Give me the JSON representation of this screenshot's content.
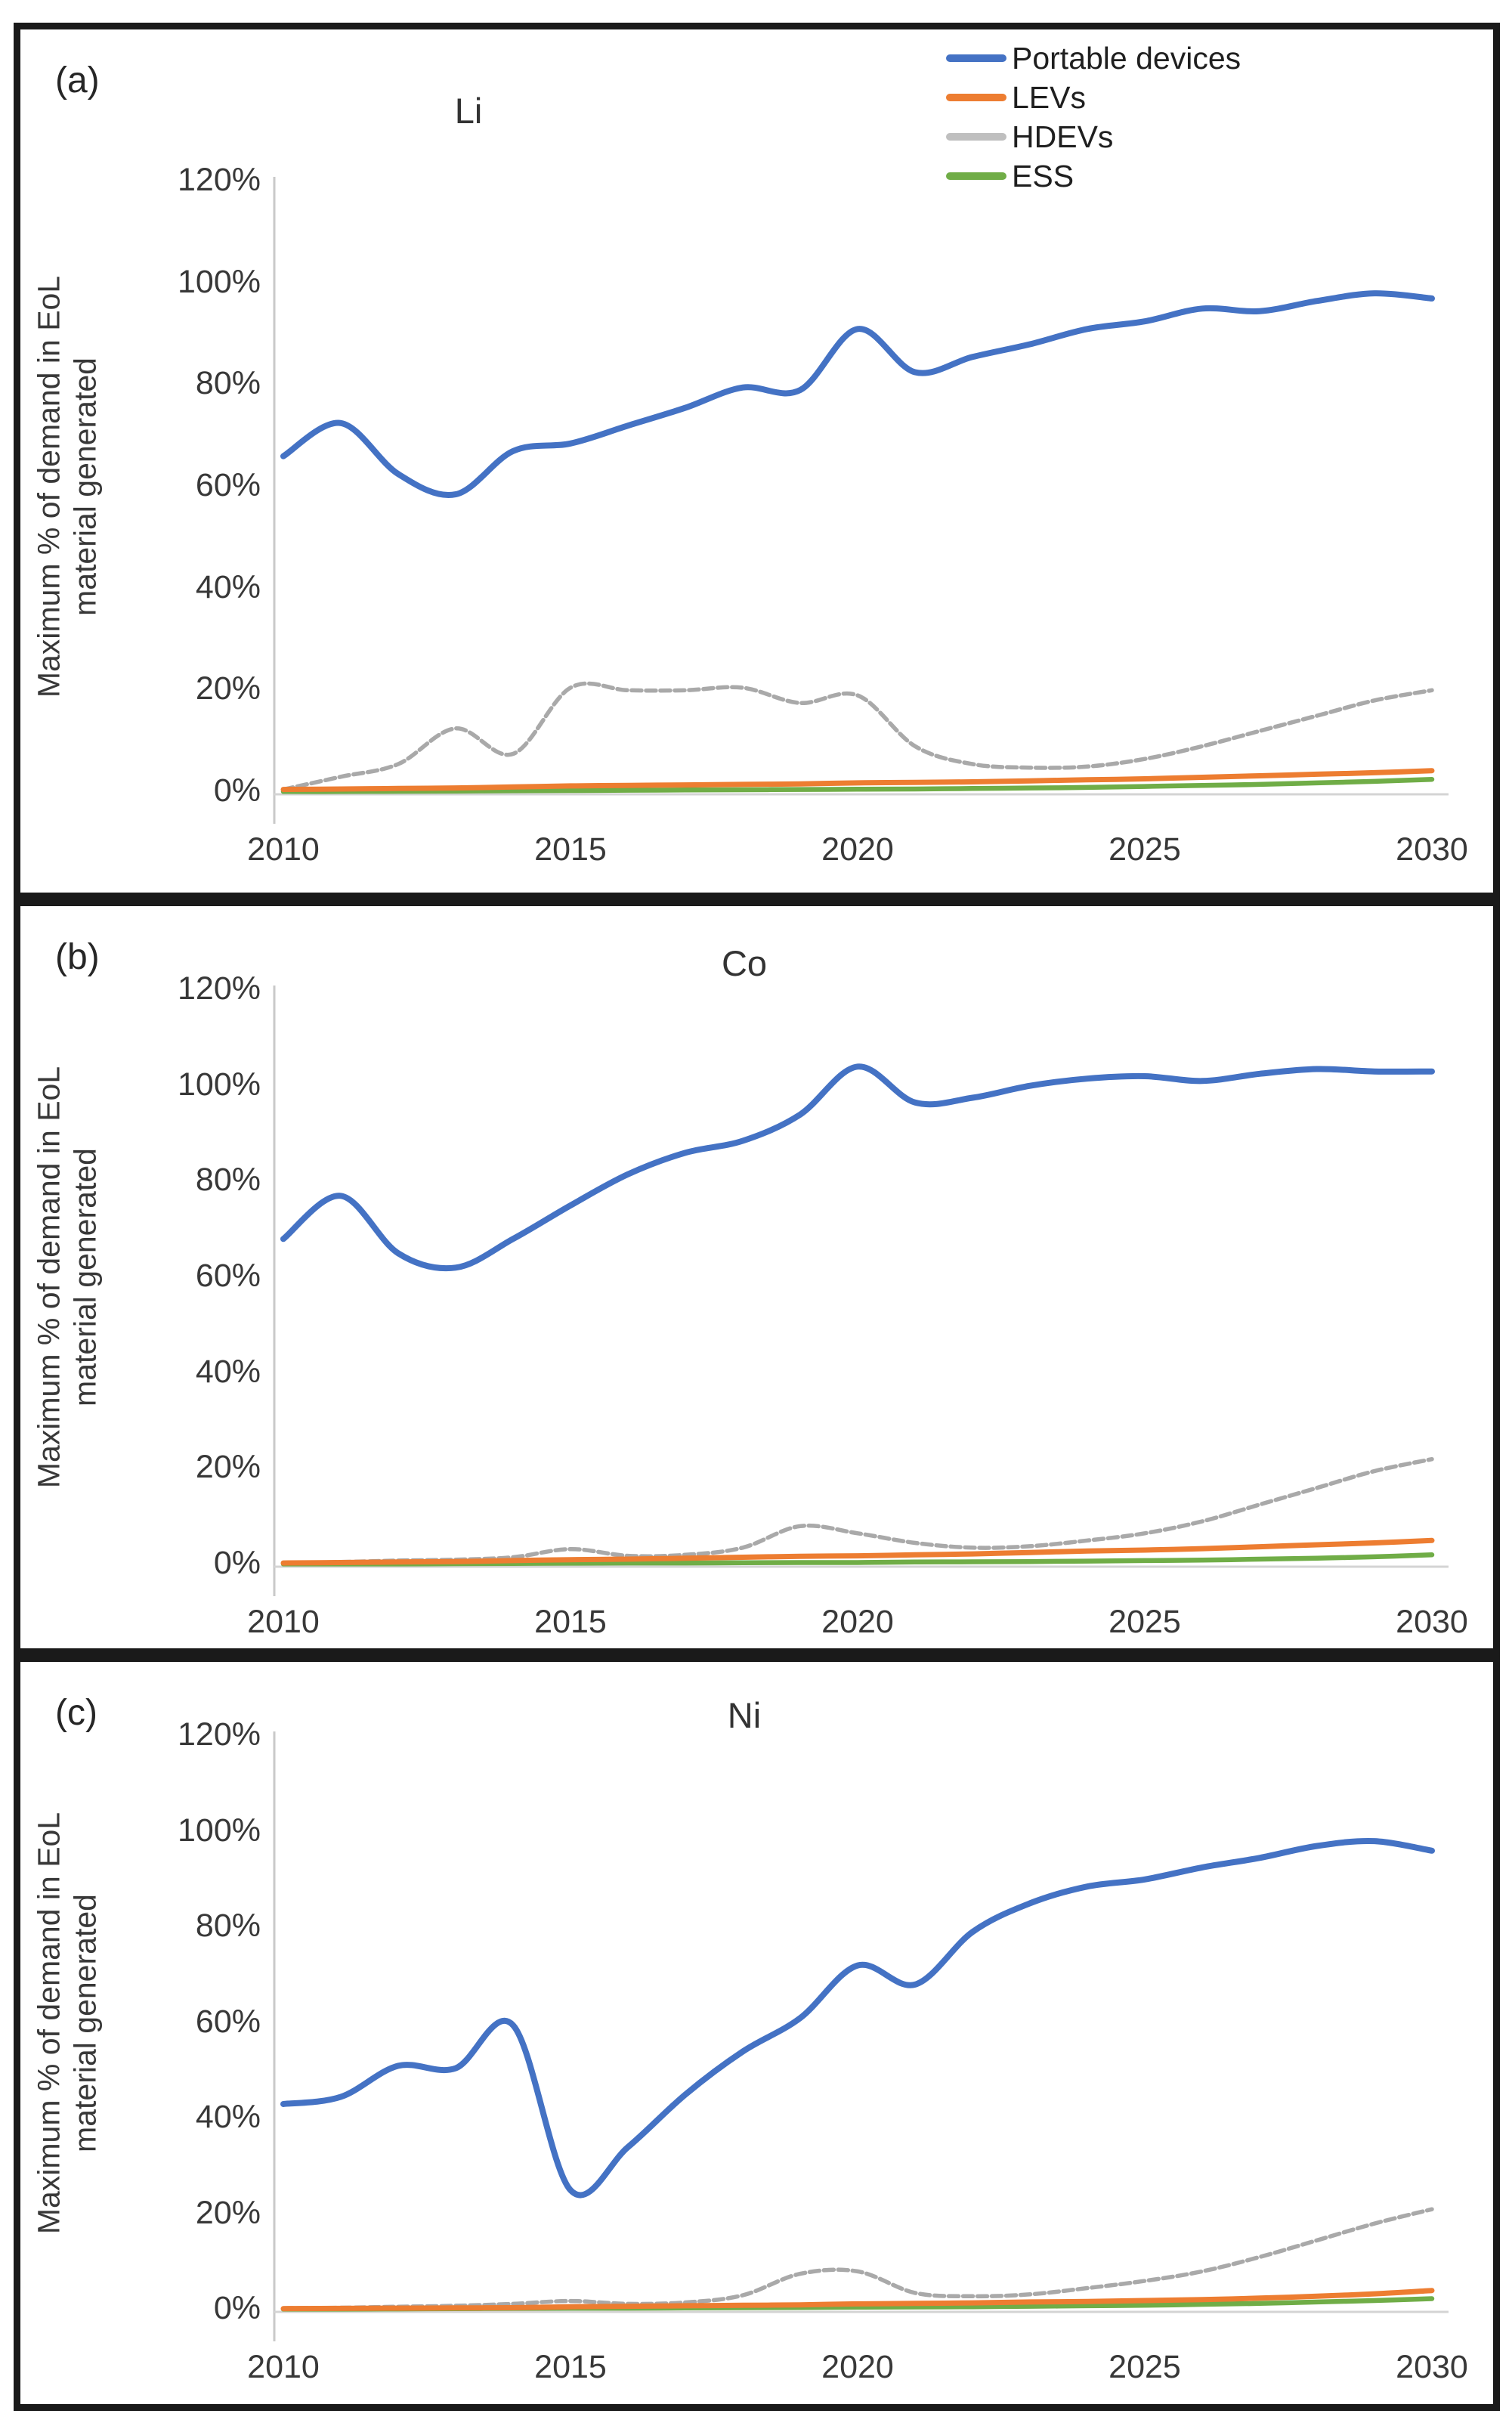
{
  "figure": {
    "ylabel_line1": "Maximum % of demand in EoL",
    "ylabel_line2": "material generated",
    "y_tick_labels": [
      "0%",
      "20%",
      "40%",
      "60%",
      "80%",
      "100%",
      "120%"
    ],
    "x_tick_labels": [
      "2010",
      "2015",
      "2020",
      "2025",
      "2030"
    ]
  },
  "legend": {
    "items": [
      {
        "label": "Portable devices",
        "color": "#4472C4"
      },
      {
        "label": "LEVs",
        "color": "#ED7D31"
      },
      {
        "label": "HDEVs",
        "color": "#BFBFBF"
      },
      {
        "label": "ESS",
        "color": "#70AD47"
      }
    ]
  },
  "panels": [
    {
      "label": "(a)",
      "title": "Li"
    },
    {
      "label": "(b)",
      "title": "Co"
    },
    {
      "label": "(c)",
      "title": "Ni"
    }
  ],
  "chart_data": [
    {
      "type": "line",
      "panel": "(a)",
      "title": "Li",
      "xlabel": "",
      "ylabel": "Maximum % of demand in EoL material generated",
      "xlim": [
        2010,
        2030
      ],
      "ylim": [
        0,
        120
      ],
      "grid": false,
      "legend_position": "top-right",
      "x": [
        2010,
        2011,
        2012,
        2013,
        2014,
        2015,
        2016,
        2017,
        2018,
        2019,
        2020,
        2021,
        2022,
        2023,
        2024,
        2025,
        2026,
        2027,
        2028,
        2029,
        2030
      ],
      "series": [
        {
          "name": "Portable devices",
          "color": "#4472C4",
          "values": [
            66,
            72.5,
            62.5,
            58.5,
            67,
            68.5,
            72,
            75.5,
            79.5,
            79,
            91,
            82.5,
            85.5,
            88,
            91,
            92.5,
            95,
            94.5,
            96.5,
            98,
            97
          ]
        },
        {
          "name": "LEVs",
          "color": "#ED7D31",
          "values": [
            0.5,
            0.6,
            0.7,
            0.8,
            1,
            1.2,
            1.3,
            1.4,
            1.5,
            1.6,
            1.8,
            1.9,
            2,
            2.2,
            2.4,
            2.6,
            2.9,
            3.2,
            3.5,
            3.8,
            4.2
          ]
        },
        {
          "name": "HDEVs",
          "color": "#A9A9A9",
          "values": [
            0.5,
            3,
            5.5,
            12.5,
            7.5,
            20.5,
            20,
            20,
            20.5,
            17.5,
            19,
            9,
            5.5,
            4.8,
            5,
            6.5,
            9,
            12,
            15,
            18,
            20
          ]
        },
        {
          "name": "ESS",
          "color": "#70AD47",
          "values": [
            0.1,
            0.1,
            0.15,
            0.2,
            0.25,
            0.3,
            0.35,
            0.4,
            0.45,
            0.5,
            0.55,
            0.6,
            0.7,
            0.8,
            0.9,
            1.1,
            1.3,
            1.5,
            1.8,
            2.1,
            2.5
          ]
        }
      ]
    },
    {
      "type": "line",
      "panel": "(b)",
      "title": "Co",
      "xlabel": "",
      "ylabel": "Maximum % of demand in EoL material generated",
      "xlim": [
        2010,
        2030
      ],
      "ylim": [
        0,
        120
      ],
      "grid": false,
      "x": [
        2010,
        2011,
        2012,
        2013,
        2014,
        2015,
        2016,
        2017,
        2018,
        2019,
        2020,
        2021,
        2022,
        2023,
        2024,
        2025,
        2026,
        2027,
        2028,
        2029,
        2030
      ],
      "series": [
        {
          "name": "Portable devices",
          "color": "#4472C4",
          "values": [
            68,
            77,
            65,
            62,
            68,
            75,
            81.5,
            86,
            88.5,
            94,
            104,
            96.5,
            97.5,
            100,
            101.5,
            102,
            101,
            102.5,
            103.5,
            103,
            103
          ]
        },
        {
          "name": "LEVs",
          "color": "#ED7D31",
          "values": [
            0.3,
            0.4,
            0.5,
            0.6,
            0.8,
            1,
            1.1,
            1.3,
            1.5,
            1.7,
            1.8,
            2,
            2.2,
            2.5,
            2.8,
            3,
            3.3,
            3.7,
            4.1,
            4.5,
            5
          ]
        },
        {
          "name": "HDEVs",
          "color": "#A9A9A9",
          "values": [
            0.3,
            0.5,
            0.8,
            1,
            1.5,
            3.2,
            1.8,
            2,
            3.5,
            8,
            6.5,
            4.5,
            3.5,
            3.8,
            5,
            6.5,
            9,
            12.5,
            16,
            19.5,
            22
          ]
        },
        {
          "name": "ESS",
          "color": "#70AD47",
          "values": [
            0.1,
            0.1,
            0.1,
            0.15,
            0.2,
            0.25,
            0.3,
            0.3,
            0.35,
            0.4,
            0.4,
            0.5,
            0.55,
            0.6,
            0.7,
            0.8,
            0.9,
            1.1,
            1.3,
            1.6,
            2
          ]
        }
      ]
    },
    {
      "type": "line",
      "panel": "(c)",
      "title": "Ni",
      "xlabel": "",
      "ylabel": "Maximum % of demand in EoL material generated",
      "xlim": [
        2010,
        2030
      ],
      "ylim": [
        0,
        120
      ],
      "grid": false,
      "x": [
        2010,
        2011,
        2012,
        2013,
        2014,
        2015,
        2016,
        2017,
        2018,
        2019,
        2020,
        2021,
        2022,
        2023,
        2024,
        2025,
        2026,
        2027,
        2028,
        2029,
        2030
      ],
      "series": [
        {
          "name": "Portable devices",
          "color": "#4472C4",
          "values": [
            43,
            44.5,
            51,
            50.5,
            59.5,
            25,
            34,
            45,
            54,
            61,
            72,
            68,
            79,
            85,
            88.5,
            90,
            92.5,
            94.5,
            97,
            98,
            96
          ]
        },
        {
          "name": "LEVs",
          "color": "#ED7D31",
          "values": [
            0.2,
            0.25,
            0.3,
            0.35,
            0.4,
            0.6,
            0.7,
            0.8,
            0.9,
            1,
            1.2,
            1.3,
            1.4,
            1.6,
            1.7,
            1.9,
            2.1,
            2.4,
            2.8,
            3.3,
            4
          ]
        },
        {
          "name": "HDEVs",
          "color": "#A9A9A9",
          "values": [
            0.3,
            0.4,
            0.6,
            0.8,
            1.2,
            1.8,
            1.2,
            1.5,
            3,
            7.5,
            8,
            3.5,
            2.8,
            3.2,
            4.5,
            6,
            8,
            11,
            14.5,
            18,
            21
          ]
        },
        {
          "name": "ESS",
          "color": "#70AD47",
          "values": [
            0.1,
            0.1,
            0.15,
            0.2,
            0.25,
            0.3,
            0.3,
            0.35,
            0.4,
            0.45,
            0.5,
            0.55,
            0.6,
            0.7,
            0.8,
            0.9,
            1.1,
            1.3,
            1.6,
            1.9,
            2.3
          ]
        }
      ]
    }
  ]
}
